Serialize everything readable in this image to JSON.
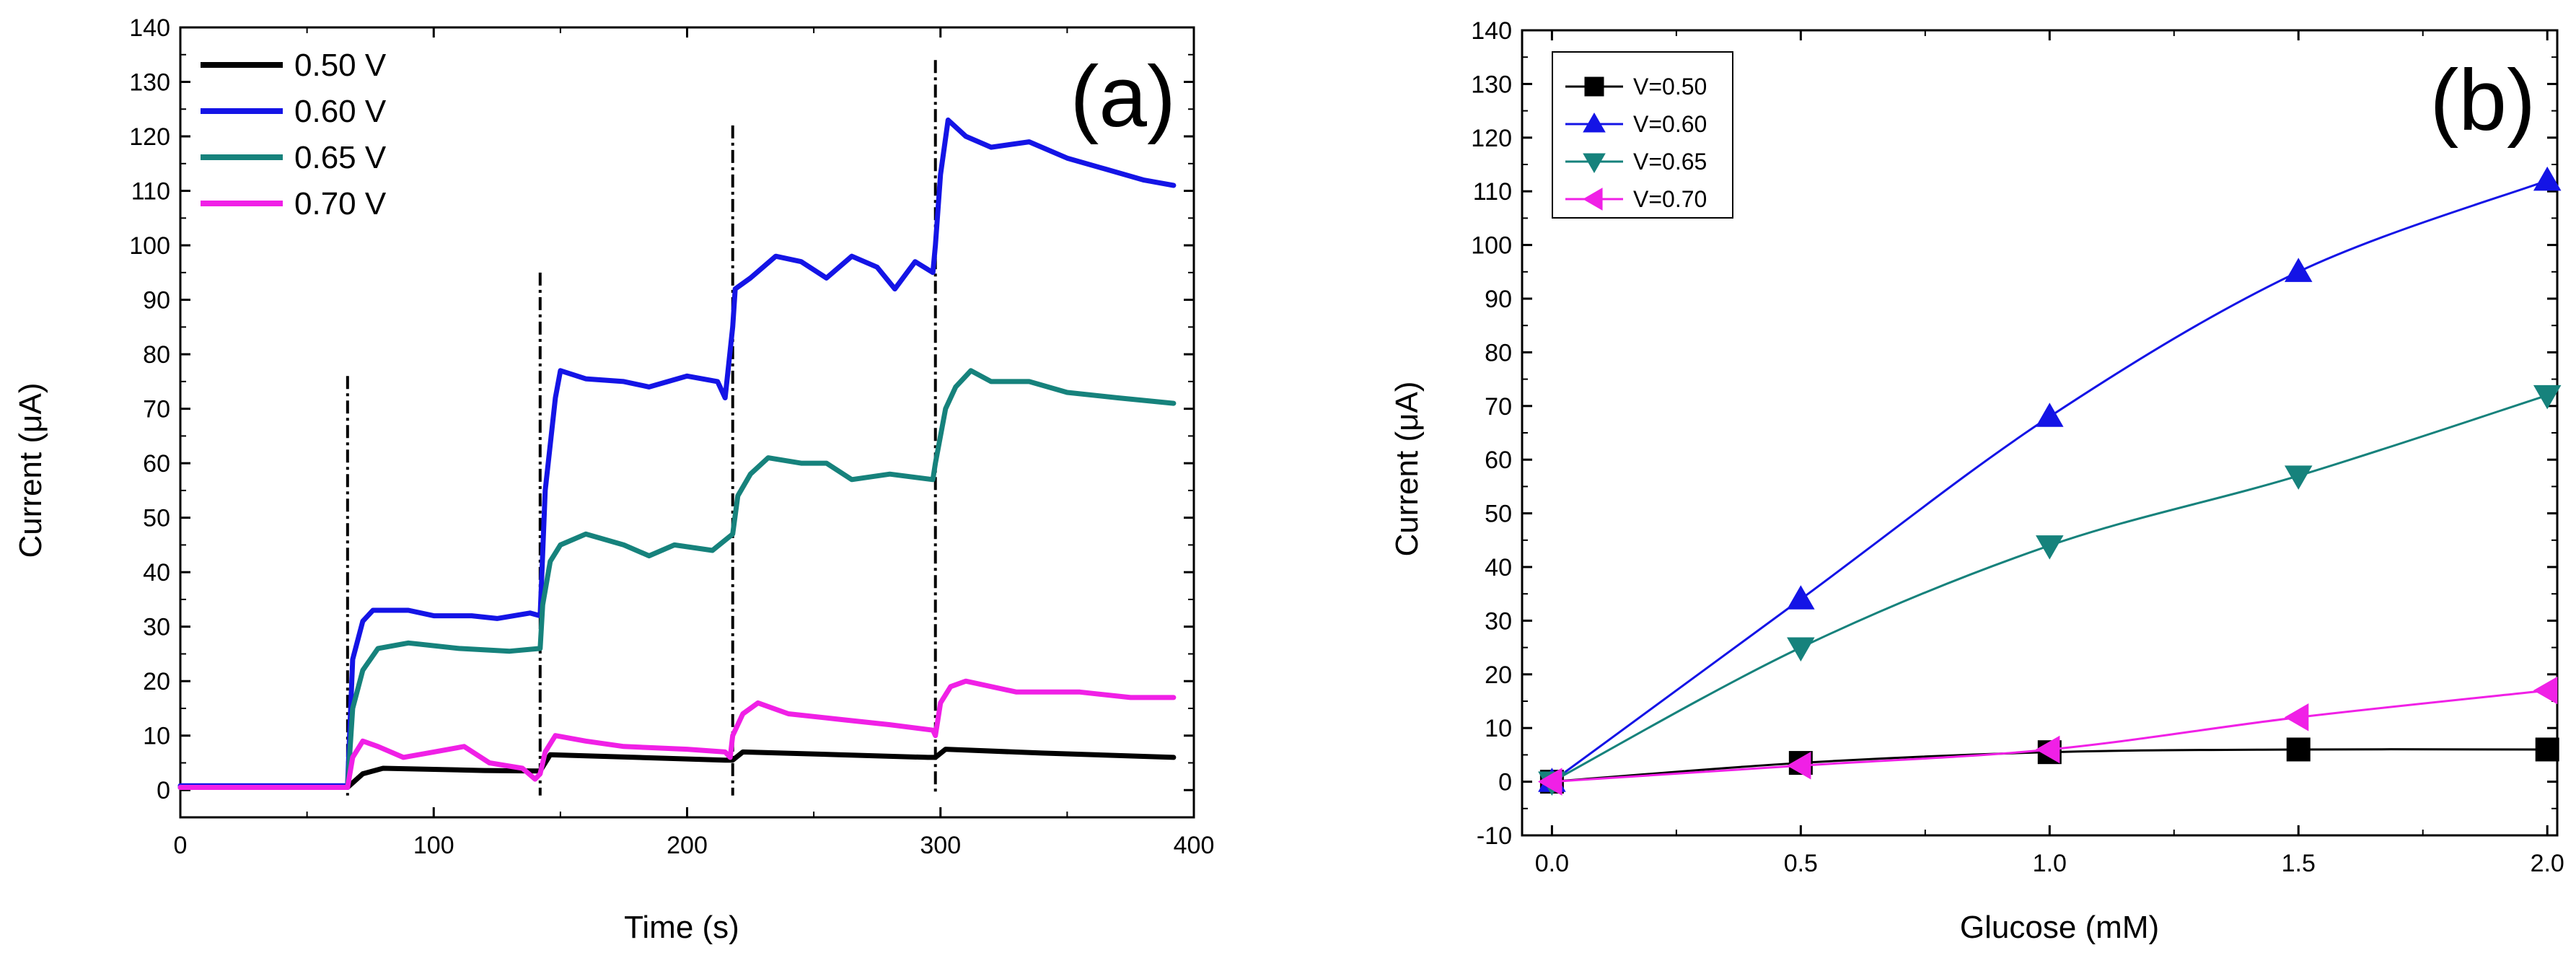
{
  "colors": {
    "v050": "#000000",
    "v060": "#1414e6",
    "v065": "#16827c",
    "v070": "#f020e6",
    "axis": "#000000",
    "background": "#ffffff"
  },
  "chart_data": [
    {
      "type": "line",
      "panel_label": "(a)",
      "title": "",
      "xlabel": "Time (s)",
      "ylabel": "Current (μA)",
      "xlim": [
        0,
        400
      ],
      "ylim": [
        -5,
        140
      ],
      "xticks": [
        0,
        100,
        200,
        300,
        400
      ],
      "yticks": [
        0,
        10,
        20,
        30,
        40,
        50,
        60,
        70,
        80,
        90,
        100,
        110,
        120,
        130,
        140
      ],
      "legend_position": "top-left",
      "injection_times": [
        66,
        142,
        218,
        298
      ],
      "injection_line_tops": [
        76,
        95,
        122,
        134
      ],
      "series": [
        {
          "name": "0.50 V",
          "color_key": "v050",
          "points": [
            [
              0,
              0.5
            ],
            [
              66,
              0.5
            ],
            [
              72,
              3
            ],
            [
              80,
              4
            ],
            [
              100,
              3.8
            ],
            [
              120,
              3.6
            ],
            [
              140,
              3.5
            ],
            [
              142,
              3.5
            ],
            [
              146,
              6.5
            ],
            [
              180,
              6
            ],
            [
              215,
              5.5
            ],
            [
              218,
              5.5
            ],
            [
              222,
              7
            ],
            [
              260,
              6.5
            ],
            [
              295,
              6
            ],
            [
              298,
              6
            ],
            [
              302,
              7.5
            ],
            [
              340,
              6.8
            ],
            [
              392,
              6
            ]
          ]
        },
        {
          "name": "0.60 V",
          "color_key": "v060",
          "points": [
            [
              0,
              0.8
            ],
            [
              66,
              0.8
            ],
            [
              68,
              24
            ],
            [
              72,
              31
            ],
            [
              76,
              33
            ],
            [
              90,
              33
            ],
            [
              100,
              32
            ],
            [
              115,
              32
            ],
            [
              125,
              31.5
            ],
            [
              138,
              32.5
            ],
            [
              142,
              32
            ],
            [
              144,
              55
            ],
            [
              148,
              72
            ],
            [
              150,
              77
            ],
            [
              160,
              75.5
            ],
            [
              175,
              75
            ],
            [
              185,
              74
            ],
            [
              200,
              76
            ],
            [
              212,
              75
            ],
            [
              215,
              72
            ],
            [
              218,
              85
            ],
            [
              219,
              92
            ],
            [
              225,
              94
            ],
            [
              235,
              98
            ],
            [
              245,
              97
            ],
            [
              255,
              94
            ],
            [
              265,
              98
            ],
            [
              275,
              96
            ],
            [
              282,
              92
            ],
            [
              290,
              97
            ],
            [
              297,
              95
            ],
            [
              298,
              100
            ],
            [
              300,
              113
            ],
            [
              303,
              123
            ],
            [
              310,
              120
            ],
            [
              320,
              118
            ],
            [
              335,
              119
            ],
            [
              350,
              116
            ],
            [
              365,
              114
            ],
            [
              380,
              112
            ],
            [
              392,
              111
            ]
          ]
        },
        {
          "name": "0.65 V",
          "color_key": "v065",
          "points": [
            [
              0,
              0.5
            ],
            [
              66,
              0.5
            ],
            [
              68,
              15
            ],
            [
              72,
              22
            ],
            [
              78,
              26
            ],
            [
              90,
              27
            ],
            [
              110,
              26
            ],
            [
              130,
              25.5
            ],
            [
              142,
              26
            ],
            [
              143,
              34
            ],
            [
              146,
              42
            ],
            [
              150,
              45
            ],
            [
              160,
              47
            ],
            [
              175,
              45
            ],
            [
              185,
              43
            ],
            [
              195,
              45
            ],
            [
              210,
              44
            ],
            [
              218,
              47
            ],
            [
              220,
              54
            ],
            [
              225,
              58
            ],
            [
              232,
              61
            ],
            [
              245,
              60
            ],
            [
              255,
              60
            ],
            [
              265,
              57
            ],
            [
              280,
              58
            ],
            [
              297,
              57
            ],
            [
              298,
              60
            ],
            [
              302,
              70
            ],
            [
              306,
              74
            ],
            [
              312,
              77
            ],
            [
              320,
              75
            ],
            [
              335,
              75
            ],
            [
              350,
              73
            ],
            [
              370,
              72
            ],
            [
              392,
              71
            ]
          ]
        },
        {
          "name": "0.70 V",
          "color_key": "v070",
          "points": [
            [
              0,
              0.5
            ],
            [
              66,
              0.5
            ],
            [
              68,
              6
            ],
            [
              72,
              9
            ],
            [
              78,
              8
            ],
            [
              88,
              6
            ],
            [
              100,
              7
            ],
            [
              112,
              8
            ],
            [
              122,
              5
            ],
            [
              135,
              4
            ],
            [
              140,
              2
            ],
            [
              142,
              3
            ],
            [
              144,
              7
            ],
            [
              148,
              10
            ],
            [
              160,
              9
            ],
            [
              175,
              8
            ],
            [
              200,
              7.5
            ],
            [
              215,
              7
            ],
            [
              217,
              6
            ],
            [
              218,
              10
            ],
            [
              222,
              14
            ],
            [
              228,
              16
            ],
            [
              240,
              14
            ],
            [
              260,
              13
            ],
            [
              280,
              12
            ],
            [
              297,
              11
            ],
            [
              298,
              10
            ],
            [
              300,
              16
            ],
            [
              304,
              19
            ],
            [
              310,
              20
            ],
            [
              330,
              18
            ],
            [
              355,
              18
            ],
            [
              375,
              17
            ],
            [
              392,
              17
            ]
          ]
        }
      ]
    },
    {
      "type": "line",
      "panel_label": "(b)",
      "title": "",
      "xlabel": "Glucose (mM)",
      "ylabel": "Current (μA)",
      "xlim": [
        -0.06,
        2.02
      ],
      "ylim": [
        -10,
        140
      ],
      "xticks": [
        0.0,
        0.5,
        1.0,
        1.5,
        2.0
      ],
      "yticks": [
        -10,
        0,
        10,
        20,
        30,
        40,
        50,
        60,
        70,
        80,
        90,
        100,
        110,
        120,
        130,
        140
      ],
      "legend_position": "top-left",
      "x": [
        0.0,
        0.5,
        1.0,
        1.5,
        2.0
      ],
      "series": [
        {
          "name": "V=0.50",
          "color_key": "v050",
          "marker": "square",
          "values": [
            0,
            3.5,
            5.5,
            6,
            6
          ]
        },
        {
          "name": "V=0.60",
          "color_key": "v060",
          "marker": "triangle-up",
          "values": [
            0,
            34,
            68,
            95,
            112
          ]
        },
        {
          "name": "V=0.65",
          "color_key": "v065",
          "marker": "triangle-down",
          "values": [
            0,
            25,
            44,
            57,
            72
          ]
        },
        {
          "name": "V=0.70",
          "color_key": "v070",
          "marker": "triangle-left",
          "values": [
            0,
            3,
            6,
            12,
            17
          ]
        }
      ]
    }
  ]
}
